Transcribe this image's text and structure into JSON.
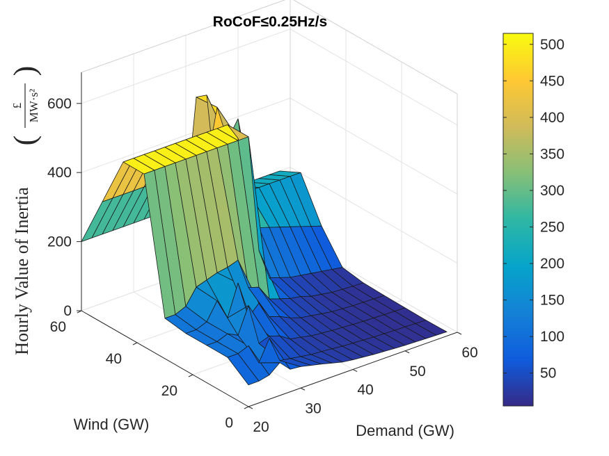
{
  "chart_data": {
    "type": "surface",
    "title": "RoCoF≤0.25Hz/s",
    "xlabel": "Demand (GW)",
    "ylabel": "Wind (GW)",
    "zlabel": "Hourly Value of Inertia",
    "zunit": {
      "open": "(",
      "numerator": "£",
      "denominator": "MW·s²",
      "close": ")"
    },
    "x_ticks": [
      "20",
      "30",
      "40",
      "50",
      "60"
    ],
    "y_ticks": [
      "0",
      "20",
      "40",
      "60"
    ],
    "z_ticks": [
      "0",
      "200",
      "400",
      "600"
    ],
    "xlim": [
      20,
      60
    ],
    "ylim": [
      0,
      60
    ],
    "zlim": [
      0,
      600
    ],
    "colormap": "parula",
    "colorbar": {
      "ticks": [
        "50",
        "100",
        "150",
        "200",
        "250",
        "300",
        "350",
        "400",
        "450",
        "500"
      ],
      "range": [
        5,
        515
      ],
      "placement": "right"
    },
    "grid": true,
    "surface": {
      "demand": [
        24,
        26,
        28,
        30,
        32,
        34,
        36,
        38,
        40,
        42,
        44,
        46,
        48,
        50,
        52,
        54,
        56,
        58
      ],
      "wind": [
        0,
        7.5,
        15,
        22.5,
        30,
        37.5,
        45,
        52.5,
        60
      ],
      "z": [
        [
          70,
          95,
          65,
          62,
          55,
          48,
          40,
          32,
          28,
          25,
          22,
          20,
          18,
          16,
          15,
          14,
          13,
          12
        ],
        [
          120,
          60,
          120,
          45,
          40,
          35,
          30,
          28,
          25,
          22,
          20,
          18,
          16,
          15,
          14,
          13,
          12,
          11
        ],
        [
          120,
          105,
          180,
          60,
          70,
          60,
          40,
          35,
          28,
          25,
          22,
          20,
          18,
          16,
          15,
          14,
          13,
          12
        ],
        [
          120,
          170,
          110,
          200,
          90,
          120,
          70,
          60,
          45,
          35,
          30,
          25,
          20,
          18,
          16,
          15,
          14,
          13
        ],
        [
          130,
          175,
          185,
          195,
          200,
          210,
          120,
          110,
          65,
          55,
          45,
          40,
          30,
          25,
          20,
          18,
          16,
          15
        ],
        [
          145,
          150,
          170,
          200,
          190,
          215,
          200,
          215,
          130,
          160,
          70,
          60,
          50,
          45,
          40,
          35,
          30,
          25
        ],
        [
          190,
          195,
          200,
          205,
          210,
          470,
          190,
          480,
          140,
          450,
          180,
          170,
          160,
          150,
          140,
          130,
          120,
          110
        ],
        [
          490,
          500,
          505,
          510,
          515,
          500,
          480,
          510,
          490,
          505,
          400,
          450,
          230,
          230,
          230,
          230,
          230,
          230
        ],
        [
          500,
          505,
          510,
          510,
          505,
          500,
          510,
          505,
          500,
          500,
          495,
          200,
          200,
          200,
          200,
          200,
          200,
          200
        ]
      ],
      "high_wind_profile": {
        "demand_range": [
          20,
          40
        ],
        "wind": [
          60,
          52.5,
          45,
          37.5
        ],
        "z": [
          200,
          350,
          500,
          500
        ]
      }
    }
  }
}
